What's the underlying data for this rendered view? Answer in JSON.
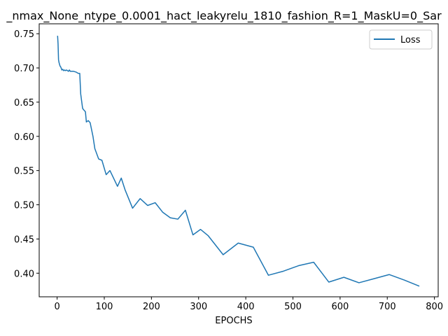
{
  "chart_data": {
    "type": "line",
    "title": "_nmax_None_ntype_0.0001_hact_leakyrelu_1810_fashion_R=1_MaskU=0_Sar",
    "xlabel": "EPOCHS",
    "ylabel": "",
    "xlim": [
      -38,
      808
    ],
    "ylim": [
      0.3655,
      0.7645
    ],
    "xticks": [
      0,
      100,
      200,
      300,
      400,
      500,
      600,
      700,
      800
    ],
    "xtick_labels": [
      "0",
      "100",
      "200",
      "300",
      "400",
      "500",
      "600",
      "700",
      "800"
    ],
    "yticks": [
      0.4,
      0.45,
      0.5,
      0.55,
      0.6,
      0.65,
      0.7,
      0.75
    ],
    "ytick_labels": [
      "0.40",
      "0.45",
      "0.50",
      "0.55",
      "0.60",
      "0.65",
      "0.70",
      "0.75"
    ],
    "grid": false,
    "legend": {
      "position": "upper right"
    },
    "series": [
      {
        "name": "Loss",
        "color": "#1f77b4",
        "x": [
          1,
          2,
          3,
          4,
          6,
          8,
          10,
          12,
          14,
          16,
          18,
          20,
          22,
          24,
          26,
          28,
          30,
          32,
          35,
          40,
          45,
          48,
          50,
          54,
          56,
          60,
          62,
          66,
          70,
          76,
          80,
          88,
          95,
          104,
          112,
          128,
          136,
          144,
          160,
          176,
          192,
          208,
          224,
          240,
          256,
          272,
          288,
          304,
          320,
          352,
          384,
          416,
          448,
          480,
          512,
          544,
          576,
          608,
          640,
          672,
          704,
          736,
          768
        ],
        "values": [
          0.747,
          0.735,
          0.712,
          0.708,
          0.703,
          0.701,
          0.697,
          0.698,
          0.696,
          0.697,
          0.696,
          0.697,
          0.696,
          0.695,
          0.697,
          0.695,
          0.695,
          0.695,
          0.695,
          0.694,
          0.692,
          0.692,
          0.662,
          0.641,
          0.639,
          0.636,
          0.621,
          0.623,
          0.62,
          0.6,
          0.582,
          0.567,
          0.565,
          0.544,
          0.55,
          0.527,
          0.539,
          0.522,
          0.495,
          0.509,
          0.499,
          0.503,
          0.489,
          0.481,
          0.479,
          0.492,
          0.456,
          0.464,
          0.455,
          0.427,
          0.444,
          0.438,
          0.397,
          0.403,
          0.411,
          0.416,
          0.387,
          0.394,
          0.386,
          0.392,
          0.398,
          0.39,
          0.381
        ]
      }
    ]
  }
}
